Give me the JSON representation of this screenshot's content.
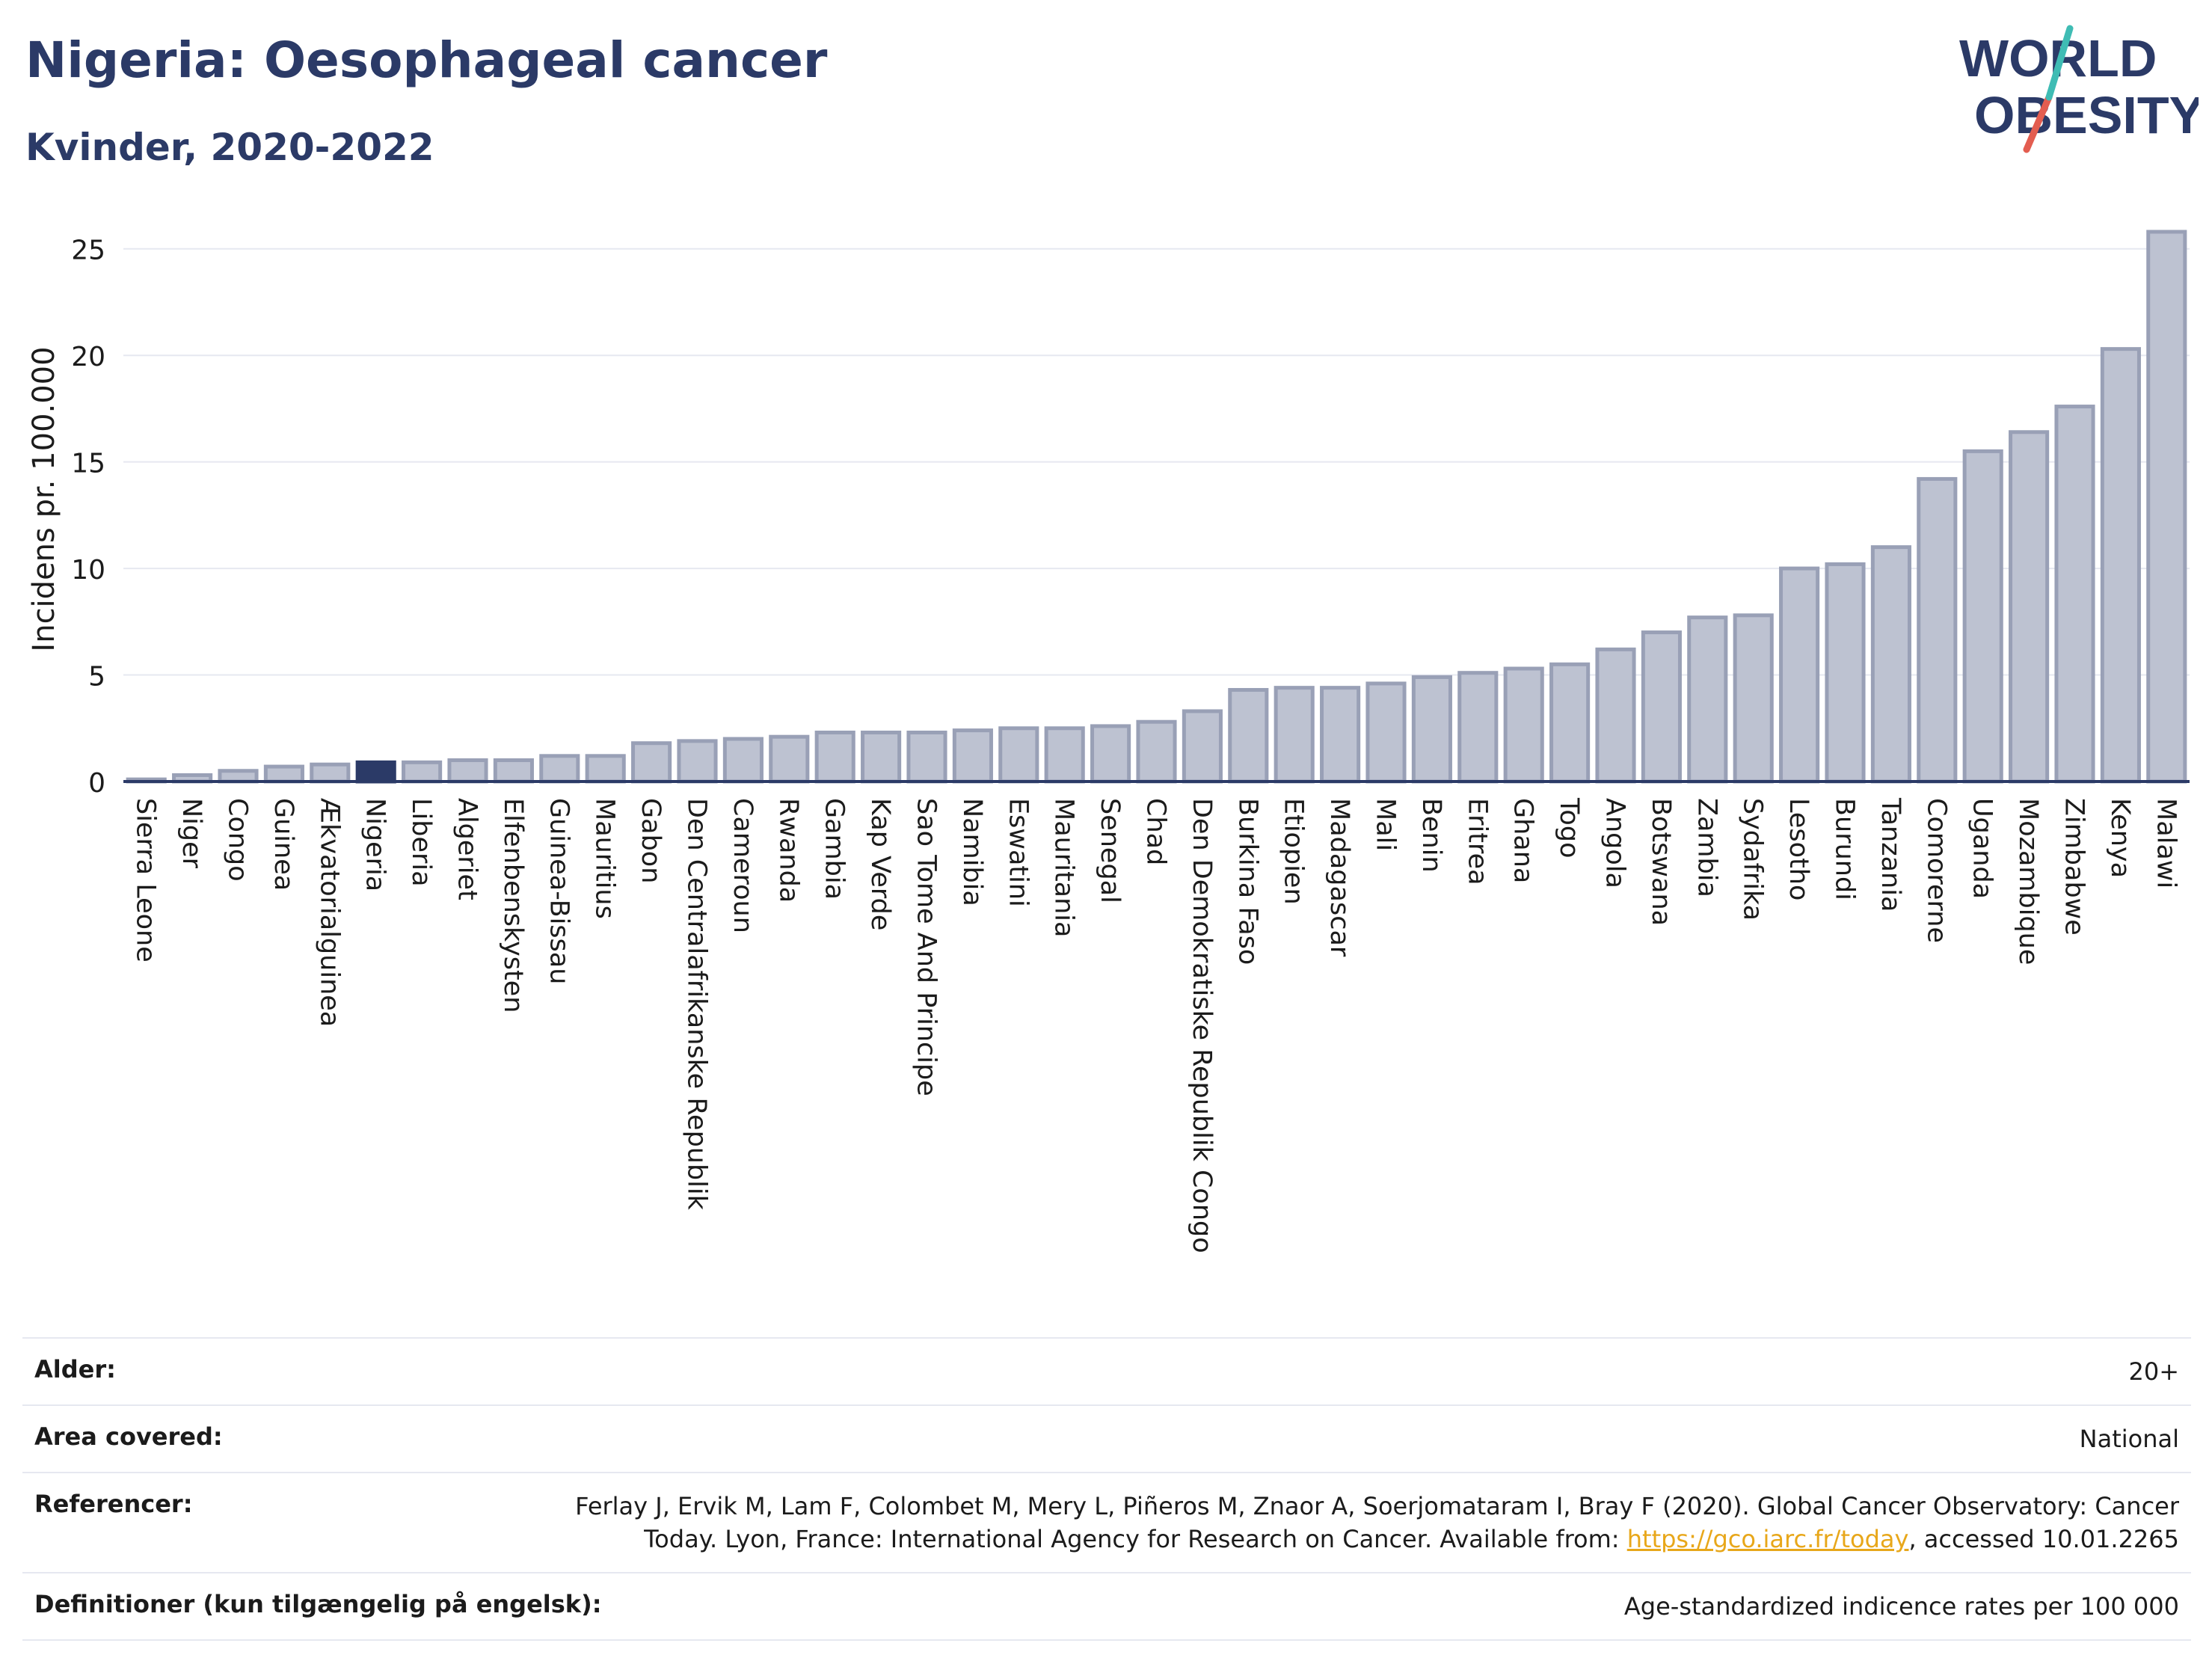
{
  "header": {
    "title": "Nigeria: Oesophageal cancer",
    "subtitle": "Kvinder, 2020-2022",
    "logo_line1": "WORLD",
    "logo_line2": "OBESITY"
  },
  "colors": {
    "bar": "#bdc2d1",
    "bar_edge": "#99a0b6",
    "highlight": "#2b3a67",
    "axis": "#2b3a67",
    "grid": "#e6e8f0",
    "logo_teal": "#3fbcb4",
    "logo_red": "#e35d50"
  },
  "chart_data": {
    "type": "bar",
    "ylabel": "Incidens pr. 100.000",
    "xlabel": "",
    "ylim": [
      0,
      26.5
    ],
    "yticks": [
      0,
      5,
      10,
      15,
      20,
      25
    ],
    "grid": true,
    "highlight": "Nigeria",
    "categories": [
      "Sierra Leone",
      "Niger",
      "Congo",
      "Guinea",
      "Ækvatorialguinea",
      "Nigeria",
      "Liberia",
      "Algeriet",
      "Elfenbenskysten",
      "Guinea-Bissau",
      "Mauritius",
      "Gabon",
      "Den Centralafrikanske Republik",
      "Cameroun",
      "Rwanda",
      "Gambia",
      "Kap Verde",
      "Sao Tome And Principe",
      "Namibia",
      "Eswatini",
      "Mauritania",
      "Senegal",
      "Chad",
      "Den Demokratiske Republik Congo",
      "Burkina Faso",
      "Etiopien",
      "Madagascar",
      "Mali",
      "Benin",
      "Eritrea",
      "Ghana",
      "Togo",
      "Angola",
      "Botswana",
      "Zambia",
      "Sydafrika",
      "Lesotho",
      "Burundi",
      "Tanzania",
      "Comorerne",
      "Uganda",
      "Mozambique",
      "Zimbabwe",
      "Kenya",
      "Malawi"
    ],
    "values": [
      0.1,
      0.3,
      0.5,
      0.7,
      0.8,
      0.9,
      0.9,
      1.0,
      1.0,
      1.2,
      1.2,
      1.8,
      1.9,
      2.0,
      2.1,
      2.3,
      2.3,
      2.3,
      2.4,
      2.5,
      2.5,
      2.6,
      2.8,
      3.3,
      4.3,
      4.4,
      4.4,
      4.6,
      4.9,
      5.1,
      5.3,
      5.5,
      6.2,
      7.0,
      7.7,
      7.8,
      10.0,
      10.2,
      11.0,
      14.2,
      15.5,
      16.4,
      17.6,
      20.3,
      25.8
    ]
  },
  "meta": {
    "age_label": "Alder:",
    "age_value": "20+",
    "area_label": "Area covered:",
    "area_value": "National",
    "ref_label": "Referencer:",
    "ref_text_1": "Ferlay J, Ervik M, Lam F, Colombet M, Mery L, Piñeros M, Znaor A, Soerjomataram I, Bray F (2020). Global Cancer Observatory: Cancer",
    "ref_text_2": "Today. Lyon, France: International Agency for Research on Cancer. Available from: ",
    "ref_link": "https://gco.iarc.fr/today",
    "ref_text_3": ", accessed 10.01.2265",
    "def_label": "Definitioner (kun tilgængelig på engelsk):",
    "def_value": "Age-standardized indicence rates per 100 000"
  }
}
